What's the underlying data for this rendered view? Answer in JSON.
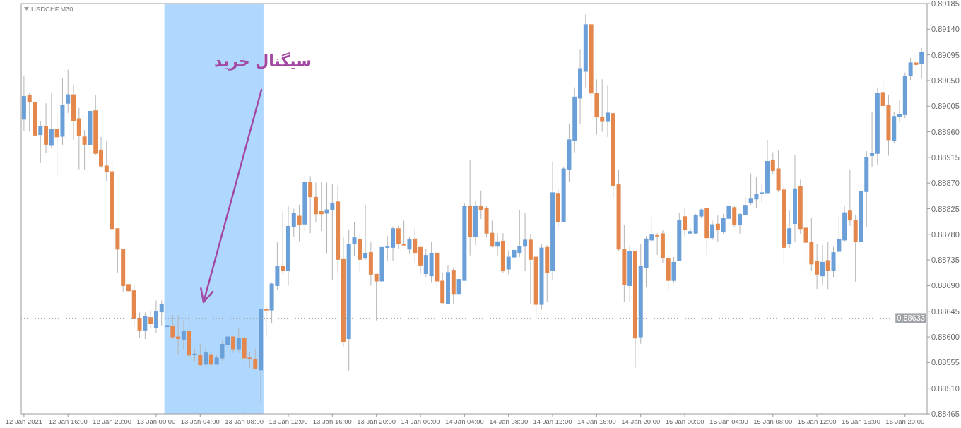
{
  "chart_data": {
    "type": "candlestick",
    "title": "USDCHF,M30",
    "x": [
      "2021-01-12T12:00",
      "2021-01-12T12:30",
      "2021-01-12T13:00",
      "2021-01-12T13:30",
      "2021-01-12T14:00",
      "2021-01-12T14:30",
      "2021-01-12T15:00",
      "2021-01-12T15:30",
      "2021-01-12T16:00",
      "2021-01-12T16:30",
      "2021-01-12T17:00",
      "2021-01-12T17:30",
      "2021-01-12T18:00",
      "2021-01-12T18:30",
      "2021-01-12T19:00",
      "2021-01-12T19:30",
      "2021-01-12T20:00",
      "2021-01-12T20:30",
      "2021-01-12T21:00",
      "2021-01-12T21:30",
      "2021-01-12T22:00",
      "2021-01-12T22:30",
      "2021-01-12T23:00",
      "2021-01-12T23:30",
      "2021-01-13T00:00",
      "2021-01-13T00:30",
      "2021-01-13T01:00",
      "2021-01-13T01:30",
      "2021-01-13T02:00",
      "2021-01-13T02:30",
      "2021-01-13T03:00",
      "2021-01-13T03:30",
      "2021-01-13T04:00",
      "2021-01-13T04:30",
      "2021-01-13T05:00",
      "2021-01-13T05:30",
      "2021-01-13T06:00",
      "2021-01-13T06:30",
      "2021-01-13T07:00",
      "2021-01-13T07:30",
      "2021-01-13T08:00",
      "2021-01-13T08:30",
      "2021-01-13T09:00",
      "2021-01-13T09:30",
      "2021-01-13T10:00",
      "2021-01-13T10:30",
      "2021-01-13T11:00",
      "2021-01-13T11:30",
      "2021-01-13T12:00",
      "2021-01-13T12:30",
      "2021-01-13T13:00",
      "2021-01-13T13:30",
      "2021-01-13T14:00",
      "2021-01-13T14:30",
      "2021-01-13T15:00",
      "2021-01-13T15:30",
      "2021-01-13T16:00",
      "2021-01-13T16:30",
      "2021-01-13T17:00",
      "2021-01-13T17:30",
      "2021-01-13T18:00",
      "2021-01-13T18:30",
      "2021-01-13T19:00",
      "2021-01-13T19:30",
      "2021-01-13T20:00",
      "2021-01-13T20:30",
      "2021-01-13T21:00",
      "2021-01-13T21:30",
      "2021-01-13T22:00",
      "2021-01-13T22:30",
      "2021-01-13T23:00",
      "2021-01-13T23:30",
      "2021-01-14T00:00",
      "2021-01-14T00:30",
      "2021-01-14T01:00",
      "2021-01-14T01:30",
      "2021-01-14T02:00",
      "2021-01-14T02:30",
      "2021-01-14T03:00",
      "2021-01-14T03:30",
      "2021-01-14T04:00",
      "2021-01-14T04:30",
      "2021-01-14T05:00",
      "2021-01-14T05:30",
      "2021-01-14T06:00",
      "2021-01-14T06:30",
      "2021-01-14T07:00",
      "2021-01-14T07:30",
      "2021-01-14T08:00",
      "2021-01-14T08:30",
      "2021-01-14T09:00",
      "2021-01-14T09:30",
      "2021-01-14T10:00",
      "2021-01-14T10:30",
      "2021-01-14T11:00",
      "2021-01-14T11:30",
      "2021-01-14T12:00",
      "2021-01-14T12:30",
      "2021-01-14T13:00",
      "2021-01-14T13:30",
      "2021-01-14T14:00",
      "2021-01-14T14:30",
      "2021-01-14T15:00",
      "2021-01-14T15:30",
      "2021-01-14T16:00",
      "2021-01-14T16:30",
      "2021-01-14T17:00",
      "2021-01-14T17:30",
      "2021-01-14T18:00",
      "2021-01-14T18:30",
      "2021-01-14T19:00",
      "2021-01-14T19:30",
      "2021-01-14T20:00",
      "2021-01-14T20:30",
      "2021-01-14T21:00",
      "2021-01-14T21:30",
      "2021-01-14T22:00",
      "2021-01-14T22:30",
      "2021-01-14T23:00",
      "2021-01-14T23:30",
      "2021-01-15T00:00",
      "2021-01-15T00:30",
      "2021-01-15T01:00",
      "2021-01-15T01:30",
      "2021-01-15T02:00",
      "2021-01-15T02:30",
      "2021-01-15T03:00",
      "2021-01-15T03:30",
      "2021-01-15T04:00",
      "2021-01-15T04:30",
      "2021-01-15T05:00",
      "2021-01-15T05:30",
      "2021-01-15T06:00",
      "2021-01-15T06:30",
      "2021-01-15T07:00",
      "2021-01-15T07:30",
      "2021-01-15T08:00",
      "2021-01-15T08:30",
      "2021-01-15T09:00",
      "2021-01-15T09:30",
      "2021-01-15T10:00",
      "2021-01-15T10:30",
      "2021-01-15T11:00",
      "2021-01-15T11:30",
      "2021-01-15T12:00",
      "2021-01-15T12:30",
      "2021-01-15T13:00",
      "2021-01-15T13:30",
      "2021-01-15T14:00",
      "2021-01-15T14:30",
      "2021-01-15T15:00",
      "2021-01-15T15:30",
      "2021-01-15T16:00",
      "2021-01-15T16:30",
      "2021-01-15T17:00",
      "2021-01-15T17:30",
      "2021-01-15T18:00",
      "2021-01-15T18:30",
      "2021-01-15T19:00",
      "2021-01-15T19:30",
      "2021-01-15T20:00",
      "2021-01-15T20:30",
      "2021-01-15T21:00",
      "2021-01-15T21:30"
    ],
    "ohlc": [
      [
        0.88982,
        0.89057,
        0.88962,
        0.89022
      ],
      [
        0.89024,
        0.89029,
        0.8896,
        0.89012
      ],
      [
        0.89011,
        0.89021,
        0.88946,
        0.88954
      ],
      [
        0.88955,
        0.88979,
        0.88905,
        0.88969
      ],
      [
        0.88969,
        0.8901,
        0.88923,
        0.88938
      ],
      [
        0.88936,
        0.89027,
        0.88932,
        0.88965
      ],
      [
        0.88965,
        0.88991,
        0.8888,
        0.88951
      ],
      [
        0.88952,
        0.89055,
        0.88936,
        0.89006
      ],
      [
        0.8901,
        0.89069,
        0.88993,
        0.89025
      ],
      [
        0.89025,
        0.89043,
        0.88946,
        0.88979
      ],
      [
        0.88983,
        0.89002,
        0.88894,
        0.88954
      ],
      [
        0.88951,
        0.88963,
        0.88894,
        0.88938
      ],
      [
        0.88937,
        0.89002,
        0.88908,
        0.88996
      ],
      [
        0.88997,
        0.89024,
        0.88919,
        0.88922
      ],
      [
        0.88928,
        0.88951,
        0.88897,
        0.889
      ],
      [
        0.889,
        0.88943,
        0.88874,
        0.8889
      ],
      [
        0.8889,
        0.88908,
        0.88786,
        0.8879
      ],
      [
        0.8879,
        0.8879,
        0.88713,
        0.88754
      ],
      [
        0.88754,
        0.88754,
        0.88679,
        0.8869
      ],
      [
        0.88692,
        0.88693,
        0.88679,
        0.88681
      ],
      [
        0.88681,
        0.8869,
        0.88619,
        0.88632
      ],
      [
        0.88633,
        0.88643,
        0.88598,
        0.88612
      ],
      [
        0.88612,
        0.88643,
        0.88596,
        0.88636
      ],
      [
        0.88634,
        0.88647,
        0.88615,
        0.88623
      ],
      [
        0.88616,
        0.88664,
        0.88607,
        0.88644
      ],
      [
        0.88644,
        0.88664,
        0.8862,
        0.88657
      ],
      [
        0.88618,
        0.88627,
        0.88612,
        0.8862
      ],
      [
        0.88619,
        0.88639,
        0.88597,
        0.886
      ],
      [
        0.886,
        0.88638,
        0.88568,
        0.88597
      ],
      [
        0.88596,
        0.88629,
        0.88577,
        0.8861
      ],
      [
        0.8861,
        0.88641,
        0.88563,
        0.88568
      ],
      [
        0.88569,
        0.88579,
        0.88558,
        0.8857
      ],
      [
        0.88568,
        0.88588,
        0.88549,
        0.88551
      ],
      [
        0.88552,
        0.88582,
        0.88549,
        0.88572
      ],
      [
        0.88569,
        0.88575,
        0.88549,
        0.88552
      ],
      [
        0.88552,
        0.88568,
        0.88551,
        0.88563
      ],
      [
        0.88563,
        0.88593,
        0.88558,
        0.88587
      ],
      [
        0.88586,
        0.88605,
        0.88582,
        0.886
      ],
      [
        0.886,
        0.88602,
        0.88572,
        0.88579
      ],
      [
        0.88579,
        0.88616,
        0.88572,
        0.88598
      ],
      [
        0.88598,
        0.88602,
        0.88546,
        0.88563
      ],
      [
        0.88563,
        0.88574,
        0.88546,
        0.88562
      ],
      [
        0.88561,
        0.88579,
        0.88543,
        0.88545
      ],
      [
        0.88542,
        0.88648,
        0.88485,
        0.88648
      ],
      [
        0.88648,
        0.88652,
        0.886,
        0.88647
      ],
      [
        0.88647,
        0.88696,
        0.88624,
        0.88693
      ],
      [
        0.8869,
        0.88766,
        0.88683,
        0.88724
      ],
      [
        0.88724,
        0.88821,
        0.8871,
        0.88717
      ],
      [
        0.88717,
        0.8883,
        0.8869,
        0.88794
      ],
      [
        0.88794,
        0.88825,
        0.88776,
        0.88817
      ],
      [
        0.88812,
        0.88832,
        0.88768,
        0.88797
      ],
      [
        0.88798,
        0.88883,
        0.88786,
        0.88871
      ],
      [
        0.88871,
        0.88882,
        0.88782,
        0.88846
      ],
      [
        0.88845,
        0.88871,
        0.88802,
        0.88816
      ],
      [
        0.8882,
        0.88872,
        0.88786,
        0.88816
      ],
      [
        0.88817,
        0.88871,
        0.88747,
        0.88823
      ],
      [
        0.88823,
        0.88868,
        0.88699,
        0.88835
      ],
      [
        0.88837,
        0.88866,
        0.88713,
        0.88736
      ],
      [
        0.88736,
        0.88775,
        0.88582,
        0.88592
      ],
      [
        0.88597,
        0.88788,
        0.88541,
        0.88763
      ],
      [
        0.88763,
        0.88802,
        0.88742,
        0.88774
      ],
      [
        0.88771,
        0.8878,
        0.88716,
        0.88736
      ],
      [
        0.88738,
        0.88832,
        0.88735,
        0.88747
      ],
      [
        0.88748,
        0.88766,
        0.8869,
        0.8871
      ],
      [
        0.8871,
        0.8871,
        0.88629,
        0.88698
      ],
      [
        0.88698,
        0.88761,
        0.8866,
        0.88757
      ],
      [
        0.88757,
        0.88777,
        0.88733,
        0.88758
      ],
      [
        0.88757,
        0.88794,
        0.88733,
        0.8879
      ],
      [
        0.8879,
        0.88795,
        0.88754,
        0.88763
      ],
      [
        0.88763,
        0.88804,
        0.88761,
        0.88761
      ],
      [
        0.88754,
        0.88776,
        0.88747,
        0.88771
      ],
      [
        0.88772,
        0.88791,
        0.8873,
        0.88748
      ],
      [
        0.88757,
        0.88759,
        0.8871,
        0.88726
      ],
      [
        0.88711,
        0.88754,
        0.88705,
        0.88743
      ],
      [
        0.88707,
        0.88766,
        0.88696,
        0.88747
      ],
      [
        0.88747,
        0.88749,
        0.88685,
        0.88698
      ],
      [
        0.88698,
        0.88713,
        0.88657,
        0.8866
      ],
      [
        0.88658,
        0.88726,
        0.88658,
        0.88713
      ],
      [
        0.88717,
        0.88721,
        0.88657,
        0.88676
      ],
      [
        0.88676,
        0.88705,
        0.88674,
        0.88701
      ],
      [
        0.88699,
        0.88834,
        0.88699,
        0.8883
      ],
      [
        0.8883,
        0.8891,
        0.88743,
        0.88776
      ],
      [
        0.88776,
        0.88839,
        0.88761,
        0.8883
      ],
      [
        0.8883,
        0.88857,
        0.88807,
        0.88823
      ],
      [
        0.88825,
        0.8883,
        0.88776,
        0.88782
      ],
      [
        0.88782,
        0.88804,
        0.88757,
        0.88759
      ],
      [
        0.88759,
        0.88782,
        0.88743,
        0.88767
      ],
      [
        0.88768,
        0.88782,
        0.88713,
        0.88716
      ],
      [
        0.88719,
        0.88752,
        0.8871,
        0.8874
      ],
      [
        0.8874,
        0.88771,
        0.8871,
        0.88752
      ],
      [
        0.88748,
        0.88823,
        0.8874,
        0.88759
      ],
      [
        0.88759,
        0.88818,
        0.88716,
        0.8877
      ],
      [
        0.8877,
        0.8878,
        0.88657,
        0.88736
      ],
      [
        0.8874,
        0.88744,
        0.88632,
        0.88657
      ],
      [
        0.88657,
        0.88763,
        0.88648,
        0.88756
      ],
      [
        0.88757,
        0.88761,
        0.88662,
        0.88713
      ],
      [
        0.88716,
        0.88908,
        0.88699,
        0.88853
      ],
      [
        0.88852,
        0.8886,
        0.88793,
        0.88802
      ],
      [
        0.88802,
        0.88899,
        0.88802,
        0.88895
      ],
      [
        0.88894,
        0.88974,
        0.88872,
        0.88946
      ],
      [
        0.88945,
        0.89038,
        0.88924,
        0.89021
      ],
      [
        0.89019,
        0.89104,
        0.88974,
        0.89071
      ],
      [
        0.89066,
        0.89166,
        0.89038,
        0.89148
      ],
      [
        0.89148,
        0.89149,
        0.88998,
        0.89028
      ],
      [
        0.89028,
        0.89052,
        0.88955,
        0.88986
      ],
      [
        0.88986,
        0.89052,
        0.8896,
        0.88978
      ],
      [
        0.88978,
        0.89041,
        0.88951,
        0.88993
      ],
      [
        0.88992,
        0.88993,
        0.88844,
        0.88866
      ],
      [
        0.88867,
        0.88894,
        0.88751,
        0.88754
      ],
      [
        0.88754,
        0.88797,
        0.88662,
        0.88692
      ],
      [
        0.8869,
        0.88761,
        0.88662,
        0.8875
      ],
      [
        0.8875,
        0.8875,
        0.88546,
        0.88598
      ],
      [
        0.886,
        0.88763,
        0.88588,
        0.88724
      ],
      [
        0.88722,
        0.88777,
        0.88688,
        0.88772
      ],
      [
        0.8877,
        0.88811,
        0.88767,
        0.88779
      ],
      [
        0.88778,
        0.88782,
        0.88744,
        0.88777
      ],
      [
        0.88781,
        0.88788,
        0.8873,
        0.88739
      ],
      [
        0.88738,
        0.88743,
        0.88683,
        0.88699
      ],
      [
        0.88699,
        0.8874,
        0.88696,
        0.88731
      ],
      [
        0.88734,
        0.88818,
        0.88733,
        0.88804
      ],
      [
        0.88811,
        0.88827,
        0.88777,
        0.88789
      ],
      [
        0.88782,
        0.88791,
        0.8878,
        0.88785
      ],
      [
        0.88782,
        0.88816,
        0.8878,
        0.88813
      ],
      [
        0.88812,
        0.88825,
        0.88808,
        0.88823
      ],
      [
        0.88826,
        0.88826,
        0.88743,
        0.88774
      ],
      [
        0.88774,
        0.88804,
        0.8877,
        0.88797
      ],
      [
        0.88798,
        0.88813,
        0.88766,
        0.88788
      ],
      [
        0.88785,
        0.88816,
        0.88781,
        0.88808
      ],
      [
        0.88808,
        0.88846,
        0.88804,
        0.8883
      ],
      [
        0.88827,
        0.8883,
        0.88793,
        0.88797
      ],
      [
        0.88797,
        0.88818,
        0.8878,
        0.88815
      ],
      [
        0.88815,
        0.88846,
        0.88812,
        0.88831
      ],
      [
        0.88835,
        0.88887,
        0.88832,
        0.88842
      ],
      [
        0.88842,
        0.8888,
        0.88827,
        0.88851
      ],
      [
        0.88852,
        0.88868,
        0.88835,
        0.88853
      ],
      [
        0.88853,
        0.88946,
        0.8885,
        0.88908
      ],
      [
        0.8891,
        0.88924,
        0.88885,
        0.88892
      ],
      [
        0.88895,
        0.88927,
        0.88854,
        0.88858
      ],
      [
        0.88858,
        0.88868,
        0.8873,
        0.88757
      ],
      [
        0.88763,
        0.88822,
        0.88756,
        0.8879
      ],
      [
        0.88799,
        0.8892,
        0.88766,
        0.8886
      ],
      [
        0.88864,
        0.88876,
        0.8878,
        0.8879
      ],
      [
        0.88791,
        0.888,
        0.88718,
        0.88766
      ],
      [
        0.88766,
        0.88809,
        0.88716,
        0.88728
      ],
      [
        0.88733,
        0.88763,
        0.88684,
        0.8871
      ],
      [
        0.88707,
        0.88761,
        0.8869,
        0.88731
      ],
      [
        0.88734,
        0.88766,
        0.88684,
        0.88716
      ],
      [
        0.88716,
        0.88758,
        0.88705,
        0.88748
      ],
      [
        0.8875,
        0.88814,
        0.88745,
        0.88771
      ],
      [
        0.8877,
        0.8883,
        0.88767,
        0.88818
      ],
      [
        0.88821,
        0.88894,
        0.88795,
        0.88805
      ],
      [
        0.88805,
        0.88814,
        0.88697,
        0.88768
      ],
      [
        0.88768,
        0.88873,
        0.88768,
        0.88855
      ],
      [
        0.88855,
        0.88926,
        0.88793,
        0.88915
      ],
      [
        0.88918,
        0.88995,
        0.88899,
        0.88922
      ],
      [
        0.88922,
        0.89038,
        0.88901,
        0.89027
      ],
      [
        0.89029,
        0.89048,
        0.88997,
        0.89006
      ],
      [
        0.89006,
        0.89024,
        0.88918,
        0.88946
      ],
      [
        0.88945,
        0.88995,
        0.8894,
        0.88987
      ],
      [
        0.88987,
        0.89016,
        0.88977,
        0.8899
      ],
      [
        0.8899,
        0.89064,
        0.88984,
        0.89058
      ],
      [
        0.89058,
        0.8909,
        0.89051,
        0.89081
      ],
      [
        0.89081,
        0.89095,
        0.89065,
        0.89078
      ],
      [
        0.89079,
        0.89107,
        0.89053,
        0.89099
      ]
    ],
    "colors": [
      "#6a9fd8",
      "#e3874c",
      "#e3874c",
      "#6a9fd8",
      "#e3874c",
      "#6a9fd8",
      "#e3874c",
      "#6a9fd8",
      "#6a9fd8",
      "#e3874c",
      "#e3874c",
      "#e3874c",
      "#6a9fd8",
      "#e3874c",
      "#e3874c",
      "#e3874c",
      "#e3874c",
      "#e3874c",
      "#e3874c",
      "#e3874c",
      "#e3874c",
      "#e3874c",
      "#6a9fd8",
      "#e3874c",
      "#6a9fd8",
      "#6a9fd8",
      "#6a9fd8",
      "#e3874c",
      "#e3874c",
      "#6a9fd8",
      "#e3874c",
      "#6a9fd8",
      "#e3874c",
      "#6a9fd8",
      "#e3874c",
      "#6a9fd8",
      "#6a9fd8",
      "#6a9fd8",
      "#e3874c",
      "#6a9fd8",
      "#e3874c",
      "#e3874c",
      "#e3874c",
      "#6a9fd8",
      "#e3874c",
      "#6a9fd8",
      "#6a9fd8",
      "#e3874c",
      "#6a9fd8",
      "#6a9fd8",
      "#e3874c",
      "#6a9fd8",
      "#e3874c",
      "#e3874c",
      "#e3874c",
      "#6a9fd8",
      "#6a9fd8",
      "#e3874c",
      "#e3874c",
      "#6a9fd8",
      "#6a9fd8",
      "#e3874c",
      "#6a9fd8",
      "#e3874c",
      "#e3874c",
      "#6a9fd8",
      "#6a9fd8",
      "#6a9fd8",
      "#e3874c",
      "#e3874c",
      "#6a9fd8",
      "#e3874c",
      "#e3874c",
      "#6a9fd8",
      "#6a9fd8",
      "#e3874c",
      "#e3874c",
      "#6a9fd8",
      "#e3874c",
      "#6a9fd8",
      "#6a9fd8",
      "#e3874c",
      "#6a9fd8",
      "#e3874c",
      "#e3874c",
      "#e3874c",
      "#6a9fd8",
      "#e3874c",
      "#6a9fd8",
      "#6a9fd8",
      "#6a9fd8",
      "#6a9fd8",
      "#e3874c",
      "#e3874c",
      "#6a9fd8",
      "#e3874c",
      "#6a9fd8",
      "#e3874c",
      "#6a9fd8",
      "#6a9fd8",
      "#6a9fd8",
      "#6a9fd8",
      "#6a9fd8",
      "#e3874c",
      "#e3874c",
      "#e3874c",
      "#6a9fd8",
      "#e3874c",
      "#e3874c",
      "#e3874c",
      "#6a9fd8",
      "#e3874c",
      "#6a9fd8",
      "#6a9fd8",
      "#6a9fd8",
      "#e3874c",
      "#e3874c",
      "#e3874c",
      "#6a9fd8",
      "#6a9fd8",
      "#e3874c",
      "#6a9fd8",
      "#6a9fd8",
      "#6a9fd8",
      "#e3874c",
      "#6a9fd8",
      "#e3874c",
      "#6a9fd8",
      "#6a9fd8",
      "#e3874c",
      "#6a9fd8",
      "#6a9fd8",
      "#6a9fd8",
      "#6a9fd8",
      "#6a9fd8",
      "#6a9fd8",
      "#e3874c",
      "#e3874c",
      "#e3874c",
      "#6a9fd8",
      "#6a9fd8",
      "#e3874c",
      "#e3874c",
      "#e3874c",
      "#e3874c",
      "#6a9fd8",
      "#e3874c",
      "#6a9fd8",
      "#6a9fd8",
      "#6a9fd8",
      "#e3874c",
      "#e3874c",
      "#6a9fd8",
      "#6a9fd8",
      "#6a9fd8",
      "#6a9fd8",
      "#e3874c",
      "#e3874c",
      "#6a9fd8",
      "#6a9fd8",
      "#6a9fd8",
      "#6a9fd8",
      "#e3874c",
      "#6a9fd8"
    ],
    "xlim": [
      "2021-01-12T11:45",
      "2021-01-15T22:00"
    ],
    "xticks": [
      {
        "value": "2021-01-12T12:00",
        "label": "12 Jan 2021"
      },
      {
        "value": "2021-01-12T16:00",
        "label": "12 Jan 16:00"
      },
      {
        "value": "2021-01-12T20:00",
        "label": "12 Jan 20:00"
      },
      {
        "value": "2021-01-13T00:00",
        "label": "13 Jan 00:00"
      },
      {
        "value": "2021-01-13T04:00",
        "label": "13 Jan 04:00"
      },
      {
        "value": "2021-01-13T08:00",
        "label": "13 Jan 08:00"
      },
      {
        "value": "2021-01-13T12:00",
        "label": "13 Jan 12:00"
      },
      {
        "value": "2021-01-13T16:00",
        "label": "13 Jan 16:00"
      },
      {
        "value": "2021-01-13T20:00",
        "label": "13 Jan 20:00"
      },
      {
        "value": "2021-01-14T00:00",
        "label": "14 Jan 00:00"
      },
      {
        "value": "2021-01-14T04:00",
        "label": "14 Jan 04:00"
      },
      {
        "value": "2021-01-14T08:00",
        "label": "14 Jan 08:00"
      },
      {
        "value": "2021-01-14T12:00",
        "label": "14 Jan 12:00"
      },
      {
        "value": "2021-01-14T16:00",
        "label": "14 Jan 16:00"
      },
      {
        "value": "2021-01-14T20:00",
        "label": "14 Jan 20:00"
      },
      {
        "value": "2021-01-15T00:00",
        "label": "15 Jan 00:00"
      },
      {
        "value": "2021-01-15T04:00",
        "label": "15 Jan 04:00"
      },
      {
        "value": "2021-01-15T08:00",
        "label": "15 Jan 08:00"
      },
      {
        "value": "2021-01-15T12:00",
        "label": "15 Jan 12:00"
      },
      {
        "value": "2021-01-15T16:00",
        "label": "15 Jan 16:00"
      },
      {
        "value": "2021-01-15T20:00",
        "label": "15 Jan 20:00"
      }
    ],
    "ylim": [
      0.88465,
      0.89185
    ],
    "yticks": [
      0.88465,
      {
        "value": 0.8851,
        "label": "0.88510"
      },
      0.88555,
      {
        "value": 0.886,
        "label": "0.88600"
      },
      0.88645,
      {
        "value": 0.8869,
        "label": "0.88690"
      },
      0.88735,
      {
        "value": 0.8878,
        "label": "0.88780"
      },
      0.88825,
      {
        "value": 0.8887,
        "label": "0.88870"
      },
      0.88915,
      {
        "value": 0.8896,
        "label": "0.88960"
      },
      0.89005,
      {
        "value": 0.8905,
        "label": "0.89050"
      },
      0.89095,
      {
        "value": 0.8914,
        "label": "0.89140"
      },
      0.89185
    ],
    "ref_lines": [
      {
        "axis": "y",
        "value": 0.88633,
        "label": "0.88633",
        "color": "#a0a4a8",
        "line_style": "dotted"
      }
    ],
    "bands": [
      {
        "axis": "x",
        "from": "2021-01-13T00:45",
        "to": "2021-01-13T09:45",
        "color": "#1e90ff"
      }
    ],
    "annotations": [
      "سیگنال خرید"
    ]
  }
}
